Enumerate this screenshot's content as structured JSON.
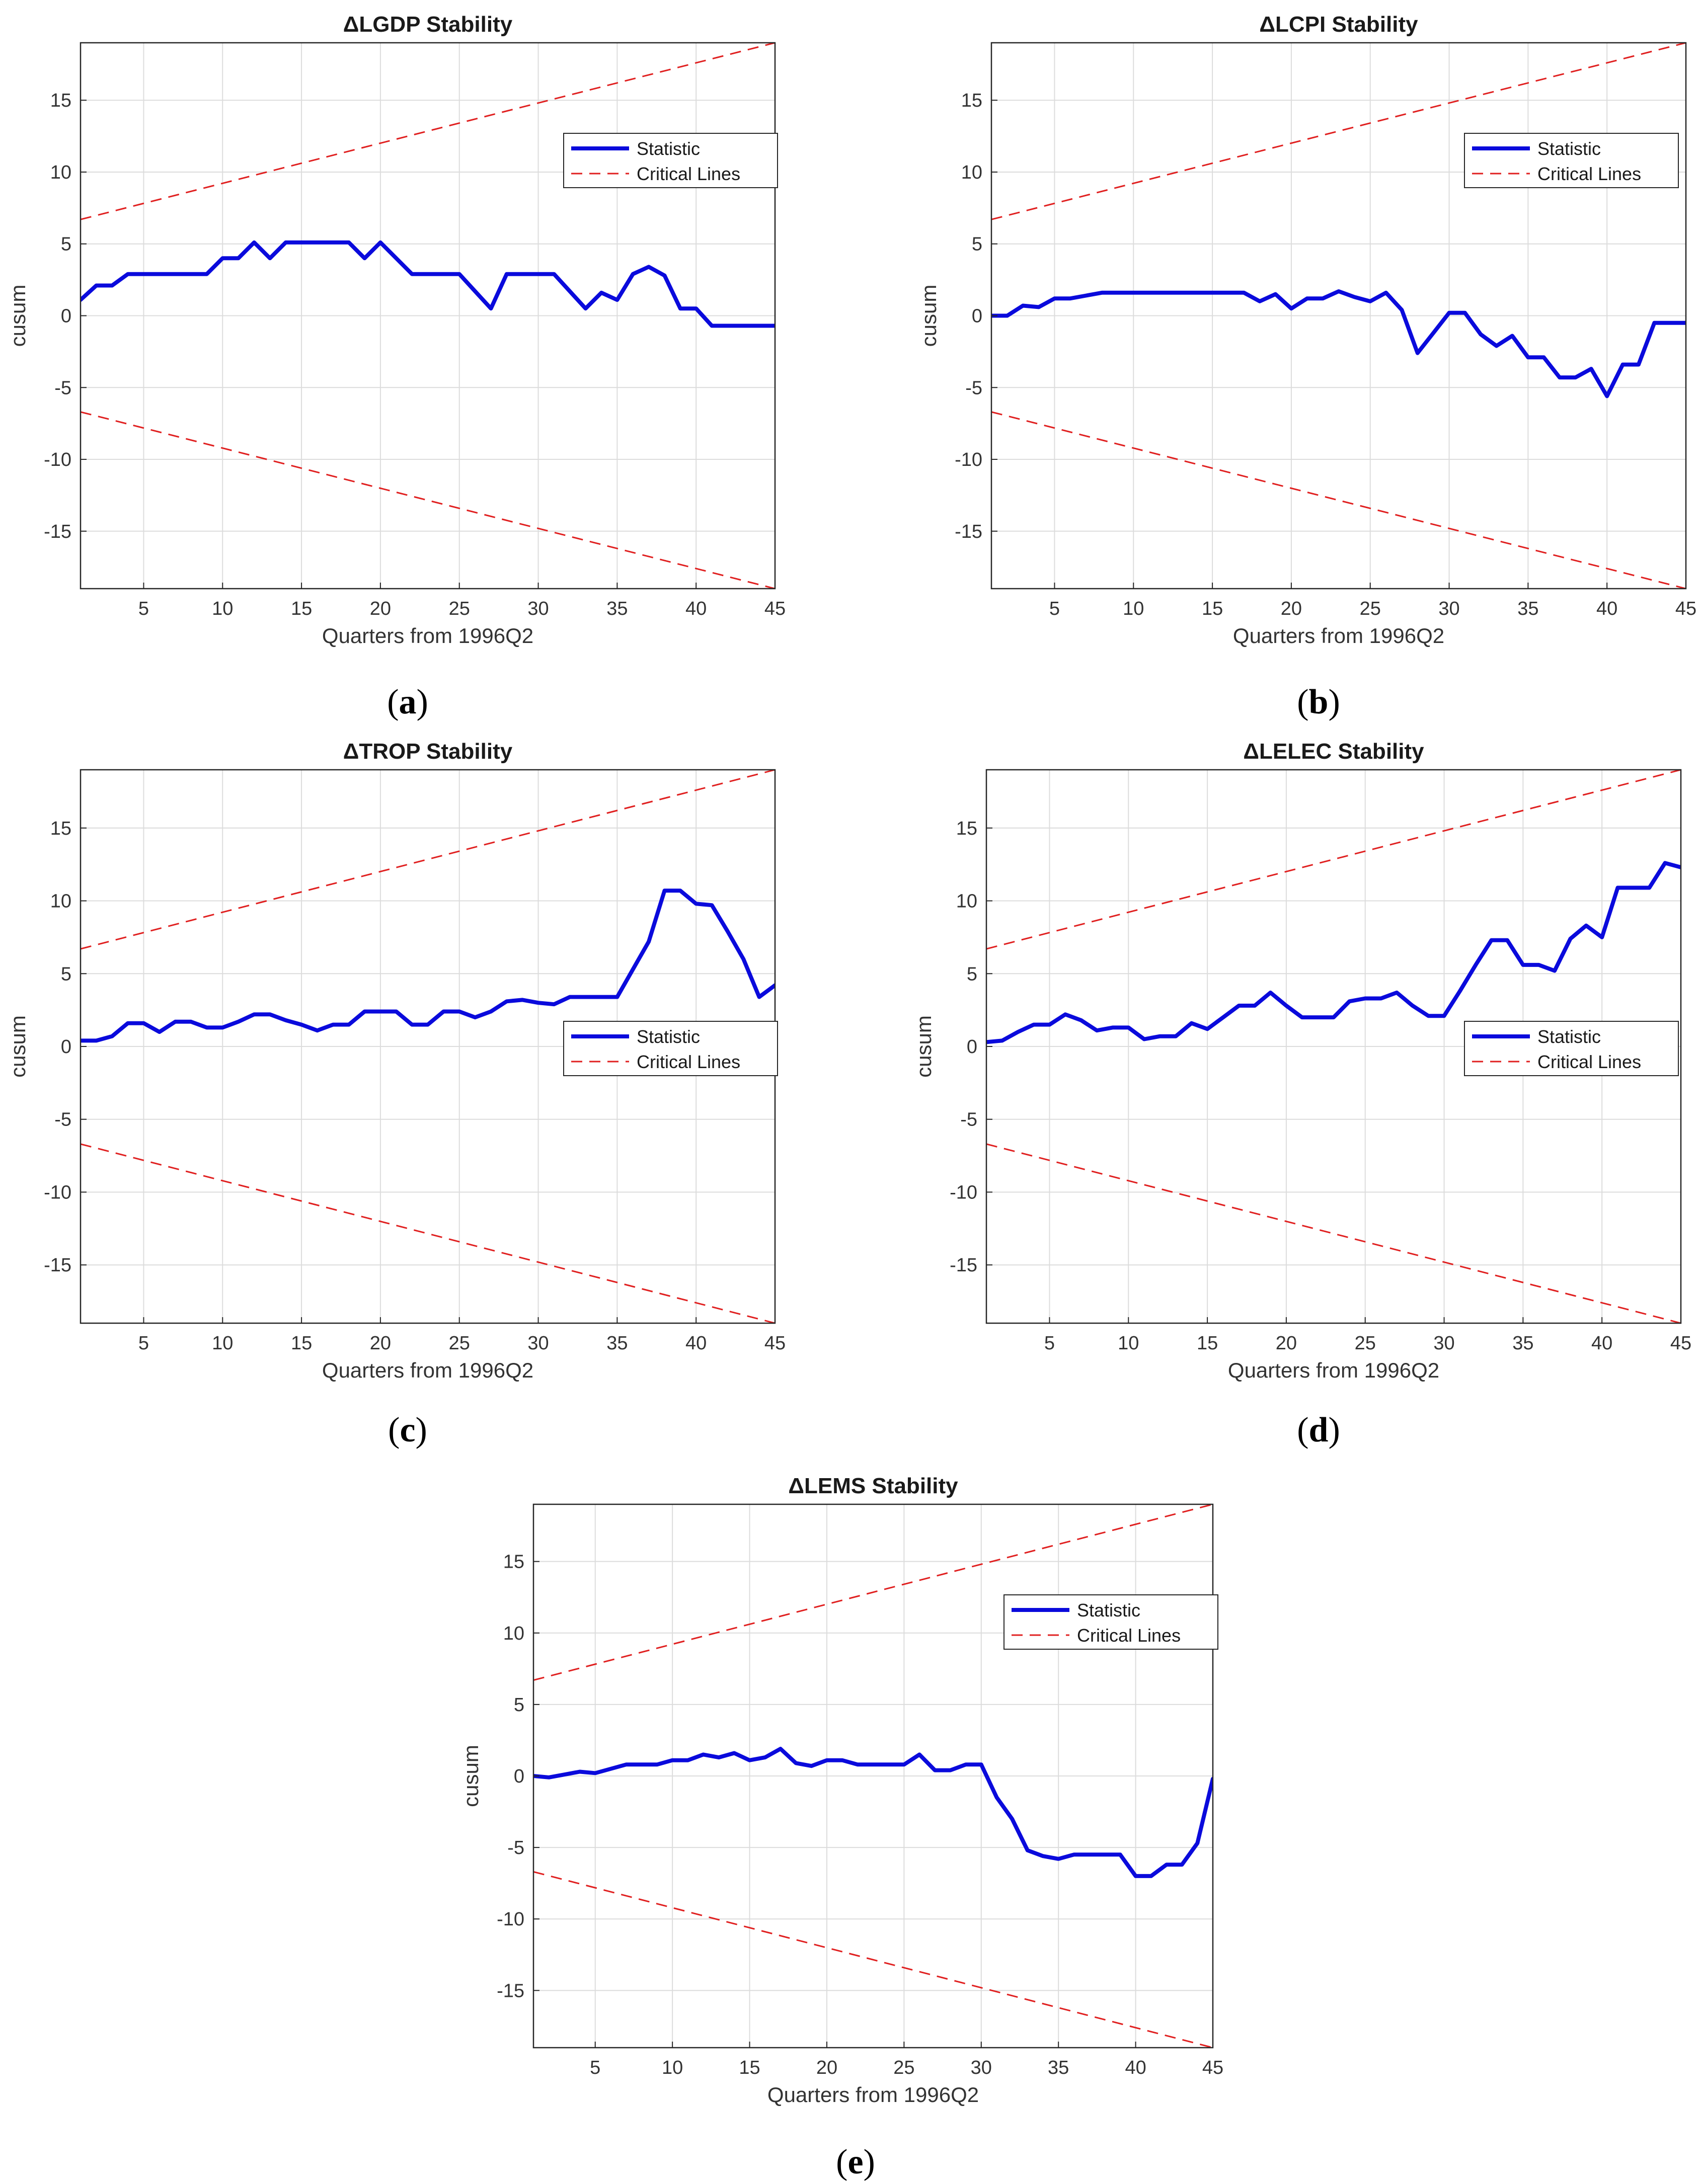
{
  "figure": {
    "x_tick_labels": [
      "5",
      "10",
      "15",
      "20",
      "25",
      "30",
      "35",
      "40",
      "45"
    ],
    "y_tick_labels": [
      "15",
      "10",
      "5",
      "0",
      "-5",
      "-10",
      "-15"
    ]
  },
  "chart_data": [
    {
      "panel": "a",
      "type": "line",
      "title": "ΔLGDP Stability",
      "xlabel": "Quarters from 1996Q2",
      "ylabel": "cusum",
      "xlim": [
        1,
        45
      ],
      "ylim": [
        -19,
        19
      ],
      "grid": true,
      "legend": {
        "position": "top-right",
        "entries": [
          "Statistic",
          "Critical Lines"
        ]
      },
      "critical_lines": {
        "upper": [
          [
            1,
            6.7
          ],
          [
            45,
            19
          ]
        ],
        "lower": [
          [
            1,
            -6.7
          ],
          [
            45,
            -19
          ]
        ]
      },
      "series": [
        {
          "name": "Statistic",
          "x": [
            1,
            2,
            3,
            4,
            5,
            6,
            7,
            8,
            9,
            10,
            11,
            12,
            13,
            14,
            15,
            16,
            17,
            18,
            19,
            20,
            21,
            22,
            23,
            24,
            25,
            26,
            27,
            28,
            29,
            30,
            31,
            32,
            33,
            34,
            35,
            36,
            37,
            38,
            39,
            40,
            41,
            42,
            43,
            44,
            45
          ],
          "values": [
            1.1,
            2.1,
            2.1,
            2.9,
            2.9,
            2.9,
            2.9,
            2.9,
            2.9,
            4.0,
            4.0,
            5.1,
            4.0,
            5.1,
            5.1,
            5.1,
            5.1,
            5.1,
            4.0,
            5.1,
            4.0,
            2.9,
            2.9,
            2.9,
            2.9,
            1.7,
            0.5,
            2.9,
            2.9,
            2.9,
            2.9,
            1.7,
            0.5,
            1.6,
            1.1,
            2.9,
            3.4,
            2.8,
            0.5,
            0.5,
            -0.7,
            -0.7,
            -0.7,
            -0.7,
            -0.7
          ]
        }
      ]
    },
    {
      "panel": "b",
      "type": "line",
      "title": "ΔLCPI Stability",
      "xlabel": "Quarters from 1996Q2",
      "ylabel": "cusum",
      "xlim": [
        1,
        45
      ],
      "ylim": [
        -19,
        19
      ],
      "grid": true,
      "legend": {
        "position": "top-right",
        "entries": [
          "Statistic",
          "Critical Lines"
        ]
      },
      "critical_lines": {
        "upper": [
          [
            1,
            6.7
          ],
          [
            45,
            19
          ]
        ],
        "lower": [
          [
            1,
            -6.7
          ],
          [
            45,
            -19
          ]
        ]
      },
      "series": [
        {
          "name": "Statistic",
          "x": [
            1,
            2,
            3,
            4,
            5,
            6,
            7,
            8,
            9,
            10,
            11,
            12,
            13,
            14,
            15,
            16,
            17,
            18,
            19,
            20,
            21,
            22,
            23,
            24,
            25,
            26,
            27,
            28,
            29,
            30,
            31,
            32,
            33,
            34,
            35,
            36,
            37,
            38,
            39,
            40,
            41,
            42,
            43,
            44,
            45
          ],
          "values": [
            0.0,
            0.0,
            0.7,
            0.6,
            1.2,
            1.2,
            1.4,
            1.6,
            1.6,
            1.6,
            1.6,
            1.6,
            1.6,
            1.6,
            1.6,
            1.6,
            1.6,
            1.0,
            1.5,
            0.5,
            1.2,
            1.2,
            1.7,
            1.3,
            1.0,
            1.6,
            0.4,
            -2.6,
            -1.2,
            0.2,
            0.2,
            -1.3,
            -2.1,
            -1.4,
            -2.9,
            -2.9,
            -4.3,
            -4.3,
            -3.7,
            -5.6,
            -3.4,
            -3.4,
            -0.5,
            -0.5,
            -0.5
          ]
        }
      ]
    },
    {
      "panel": "c",
      "type": "line",
      "title": "ΔTROP Stability",
      "xlabel": "Quarters from 1996Q2",
      "ylabel": "cusum",
      "xlim": [
        1,
        45
      ],
      "ylim": [
        -19,
        19
      ],
      "grid": true,
      "legend": {
        "position": "right",
        "entries": [
          "Statistic",
          "Critical Lines"
        ]
      },
      "critical_lines": {
        "upper": [
          [
            1,
            6.7
          ],
          [
            45,
            19
          ]
        ],
        "lower": [
          [
            1,
            -6.7
          ],
          [
            45,
            -19
          ]
        ]
      },
      "series": [
        {
          "name": "Statistic",
          "x": [
            1,
            2,
            3,
            4,
            5,
            6,
            7,
            8,
            9,
            10,
            11,
            12,
            13,
            14,
            15,
            16,
            17,
            18,
            19,
            20,
            21,
            22,
            23,
            24,
            25,
            26,
            27,
            28,
            29,
            30,
            31,
            32,
            33,
            34,
            35,
            36,
            37,
            38,
            39,
            40,
            41,
            42,
            43,
            44,
            45
          ],
          "values": [
            0.4,
            0.4,
            0.7,
            1.6,
            1.6,
            1.0,
            1.7,
            1.7,
            1.3,
            1.3,
            1.7,
            2.2,
            2.2,
            1.8,
            1.5,
            1.1,
            1.5,
            1.5,
            2.4,
            2.4,
            2.4,
            1.5,
            1.5,
            2.4,
            2.4,
            2.0,
            2.4,
            3.1,
            3.2,
            3.0,
            2.9,
            3.4,
            3.4,
            3.4,
            3.4,
            5.3,
            7.2,
            10.7,
            10.7,
            9.8,
            9.7,
            7.9,
            6.0,
            3.4,
            4.2
          ]
        }
      ]
    },
    {
      "panel": "d",
      "type": "line",
      "title": "ΔLELEC Stability",
      "xlabel": "Quarters from 1996Q2",
      "ylabel": "cusum",
      "xlim": [
        1,
        45
      ],
      "ylim": [
        -19,
        19
      ],
      "grid": true,
      "legend": {
        "position": "right",
        "entries": [
          "Statistic",
          "Critical Lines"
        ]
      },
      "critical_lines": {
        "upper": [
          [
            1,
            6.7
          ],
          [
            45,
            19
          ]
        ],
        "lower": [
          [
            1,
            -6.7
          ],
          [
            45,
            -19
          ]
        ]
      },
      "series": [
        {
          "name": "Statistic",
          "x": [
            1,
            2,
            3,
            4,
            5,
            6,
            7,
            8,
            9,
            10,
            11,
            12,
            13,
            14,
            15,
            16,
            17,
            18,
            19,
            20,
            21,
            22,
            23,
            24,
            25,
            26,
            27,
            28,
            29,
            30,
            31,
            32,
            33,
            34,
            35,
            36,
            37,
            38,
            39,
            40,
            41,
            42,
            43,
            44,
            45
          ],
          "values": [
            0.3,
            0.4,
            1.0,
            1.5,
            1.5,
            2.2,
            1.8,
            1.1,
            1.3,
            1.3,
            0.5,
            0.7,
            0.7,
            1.6,
            1.2,
            2.0,
            2.8,
            2.8,
            3.7,
            2.8,
            2.0,
            2.0,
            2.0,
            3.1,
            3.3,
            3.3,
            3.7,
            2.8,
            2.1,
            2.1,
            3.8,
            5.6,
            7.3,
            7.3,
            5.6,
            5.6,
            5.2,
            7.4,
            8.3,
            7.5,
            10.9,
            10.9,
            10.9,
            12.6,
            12.3
          ]
        }
      ]
    },
    {
      "panel": "e",
      "type": "line",
      "title": "ΔLEMS Stability",
      "xlabel": "Quarters from 1996Q2",
      "ylabel": "cusum",
      "xlim": [
        1,
        45
      ],
      "ylim": [
        -19,
        19
      ],
      "grid": true,
      "legend": {
        "position": "top-right",
        "entries": [
          "Statistic",
          "Critical Lines"
        ]
      },
      "critical_lines": {
        "upper": [
          [
            1,
            6.7
          ],
          [
            45,
            19
          ]
        ],
        "lower": [
          [
            1,
            -6.7
          ],
          [
            45,
            -19
          ]
        ]
      },
      "series": [
        {
          "name": "Statistic",
          "x": [
            1,
            2,
            3,
            4,
            5,
            6,
            7,
            8,
            9,
            10,
            11,
            12,
            13,
            14,
            15,
            16,
            17,
            18,
            19,
            20,
            21,
            22,
            23,
            24,
            25,
            26,
            27,
            28,
            29,
            30,
            31,
            32,
            33,
            34,
            35,
            36,
            37,
            38,
            39,
            40,
            41,
            42,
            43,
            44,
            45
          ],
          "values": [
            0.0,
            -0.1,
            0.1,
            0.3,
            0.2,
            0.5,
            0.8,
            0.8,
            0.8,
            1.1,
            1.1,
            1.5,
            1.3,
            1.6,
            1.1,
            1.3,
            1.9,
            0.9,
            0.7,
            1.1,
            1.1,
            0.8,
            0.8,
            0.8,
            0.8,
            1.5,
            0.4,
            0.4,
            0.8,
            0.8,
            -1.5,
            -3.0,
            -5.2,
            -5.6,
            -5.8,
            -5.5,
            -5.5,
            -5.5,
            -5.5,
            -7.0,
            -7.0,
            -6.2,
            -6.2,
            -4.7,
            -0.2
          ]
        }
      ]
    }
  ],
  "panel_labels": [
    {
      "open": "(",
      "letter": "a",
      "close": ")"
    },
    {
      "open": "(",
      "letter": "b",
      "close": ")"
    },
    {
      "open": "(",
      "letter": "c",
      "close": ")"
    },
    {
      "open": "(",
      "letter": "d",
      "close": ")"
    },
    {
      "open": "(",
      "letter": "e",
      "close": ")"
    }
  ],
  "colors": {
    "statistic": "#0a0adc",
    "critical": "#e02020",
    "grid": "#dcdcdc",
    "axis": "#262626",
    "background": "#ffffff"
  }
}
